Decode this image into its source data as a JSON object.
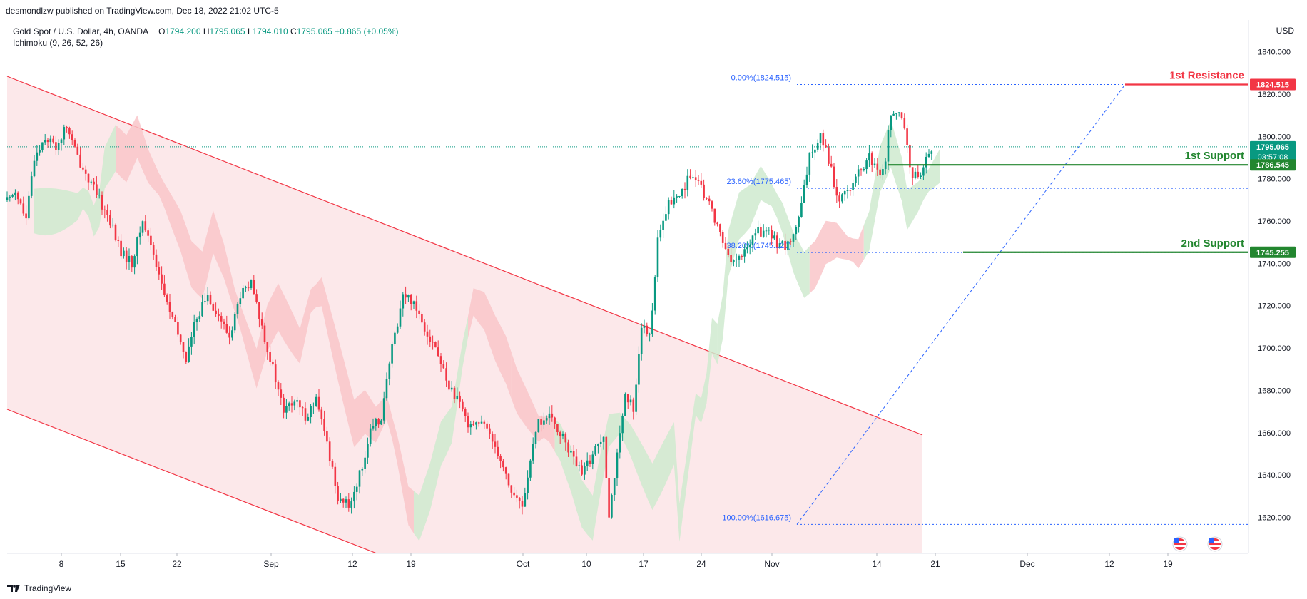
{
  "header": {
    "published_text": "desmondlzw published on TradingView.com, Dec 18, 2022 21:02 UTC-5"
  },
  "legend": {
    "symbol": "Gold Spot / U.S. Dollar, 4h, OANDA",
    "open_label": "O",
    "open": "1794.200",
    "high_label": "H",
    "high": "1795.065",
    "low_label": "L",
    "low": "1794.010",
    "close_label": "C",
    "close": "1795.065",
    "change": "+0.865 (+0.05%)",
    "indicator": "Ichimoku (9, 26, 52, 26)"
  },
  "currency": "USD",
  "footer": {
    "brand": "TradingView"
  },
  "colors": {
    "up": "#089981",
    "down": "#f23645",
    "resistance": "#f23645",
    "support": "#22862f",
    "fib": "#2962ff",
    "channel": "#f23645",
    "channel_fill": "#fce8ea",
    "cloud_red": "#f9c6c9",
    "cloud_green": "#cfeacf"
  },
  "chart_data": {
    "type": "candlestick",
    "y_axis": {
      "range": [
        1603,
        1855
      ],
      "ticks": [
        1620,
        1640,
        1660,
        1680,
        1700,
        1720,
        1740,
        1760,
        1780,
        1800,
        1820,
        1840
      ]
    },
    "x_axis": {
      "ticks": [
        "8",
        "15",
        "22",
        "Sep",
        "12",
        "19",
        "Oct",
        "10",
        "17",
        "24",
        "Nov",
        "14",
        "21",
        "Dec",
        "12",
        "19"
      ]
    },
    "price_path": [
      [
        0,
        1770
      ],
      [
        3,
        1775
      ],
      [
        7,
        1760
      ],
      [
        10,
        1790
      ],
      [
        14,
        1800
      ],
      [
        18,
        1795
      ],
      [
        22,
        1805
      ],
      [
        26,
        1790
      ],
      [
        30,
        1780
      ],
      [
        34,
        1770
      ],
      [
        38,
        1760
      ],
      [
        42,
        1745
      ],
      [
        46,
        1740
      ],
      [
        50,
        1760
      ],
      [
        54,
        1745
      ],
      [
        58,
        1725
      ],
      [
        62,
        1710
      ],
      [
        66,
        1695
      ],
      [
        70,
        1715
      ],
      [
        74,
        1725
      ],
      [
        78,
        1715
      ],
      [
        82,
        1705
      ],
      [
        86,
        1725
      ],
      [
        90,
        1730
      ],
      [
        94,
        1710
      ],
      [
        98,
        1690
      ],
      [
        102,
        1670
      ],
      [
        106,
        1675
      ],
      [
        110,
        1668
      ],
      [
        114,
        1675
      ],
      [
        118,
        1655
      ],
      [
        122,
        1630
      ],
      [
        126,
        1625
      ],
      [
        130,
        1640
      ],
      [
        134,
        1660
      ],
      [
        138,
        1668
      ],
      [
        142,
        1700
      ],
      [
        146,
        1725
      ],
      [
        150,
        1722
      ],
      [
        154,
        1710
      ],
      [
        158,
        1700
      ],
      [
        162,
        1685
      ],
      [
        166,
        1675
      ],
      [
        170,
        1665
      ],
      [
        174,
        1665
      ],
      [
        178,
        1660
      ],
      [
        182,
        1648
      ],
      [
        186,
        1632
      ],
      [
        190,
        1625
      ],
      [
        192,
        1640
      ],
      [
        196,
        1665
      ],
      [
        200,
        1667
      ],
      [
        204,
        1660
      ],
      [
        208,
        1650
      ],
      [
        212,
        1640
      ],
      [
        216,
        1650
      ],
      [
        220,
        1660
      ],
      [
        222,
        1622
      ],
      [
        224,
        1640
      ],
      [
        228,
        1676
      ],
      [
        231,
        1672
      ],
      [
        234,
        1710
      ],
      [
        237,
        1705
      ],
      [
        240,
        1750
      ],
      [
        244,
        1768
      ],
      [
        248,
        1772
      ],
      [
        252,
        1782
      ],
      [
        256,
        1775
      ],
      [
        260,
        1765
      ],
      [
        264,
        1750
      ],
      [
        268,
        1740
      ],
      [
        272,
        1745
      ],
      [
        276,
        1755
      ],
      [
        280,
        1755
      ],
      [
        284,
        1750
      ],
      [
        288,
        1748
      ],
      [
        292,
        1760
      ],
      [
        296,
        1790
      ],
      [
        300,
        1802
      ],
      [
        304,
        1785
      ],
      [
        306,
        1770
      ],
      [
        310,
        1775
      ],
      [
        314,
        1782
      ],
      [
        318,
        1790
      ],
      [
        322,
        1780
      ],
      [
        324,
        1790
      ],
      [
        326,
        1812
      ],
      [
        330,
        1808
      ],
      [
        332,
        1795
      ],
      [
        334,
        1780
      ],
      [
        338,
        1785
      ],
      [
        341,
        1795
      ]
    ],
    "annotations": {
      "fib_0": {
        "label": "0.00%(1824.515)",
        "value": 1824.515
      },
      "fib_236": {
        "label": "23.60%(1775.465)",
        "value": 1775.465
      },
      "fib_382": {
        "label": "38.20%(1745.120)",
        "value": 1745.12
      },
      "fib_100": {
        "label": "100.00%(1616.675)",
        "value": 1616.675
      },
      "resistance_1": {
        "label": "1st Resistance",
        "value": 1824.515,
        "tag": "1824.515"
      },
      "support_1": {
        "label": "1st Support",
        "value": 1786.545,
        "tag": "1786.545"
      },
      "support_2": {
        "label": "2nd Support",
        "value": 1745.255,
        "tag": "1745.255"
      },
      "last_price": {
        "value": 1795.065,
        "tag": "1795.065",
        "countdown": "03:57:08"
      }
    }
  }
}
